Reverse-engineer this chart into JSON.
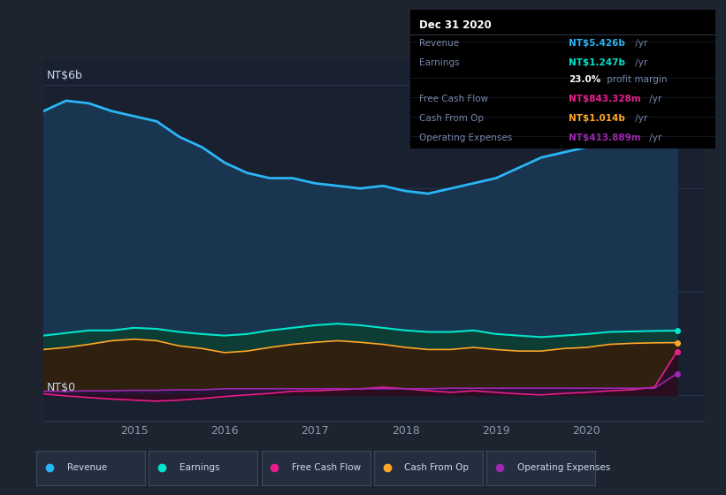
{
  "bg_color": "#1e2330",
  "plot_bg_color": "#192030",
  "ylabel_top": "NT$6b",
  "ylabel_bottom": "NT$0",
  "years": [
    2014.0,
    2014.25,
    2014.5,
    2014.75,
    2015.0,
    2015.25,
    2015.5,
    2015.75,
    2016.0,
    2016.25,
    2016.5,
    2016.75,
    2017.0,
    2017.25,
    2017.5,
    2017.75,
    2018.0,
    2018.25,
    2018.5,
    2018.75,
    2019.0,
    2019.25,
    2019.5,
    2019.75,
    2020.0,
    2020.25,
    2020.5,
    2020.75,
    2021.0
  ],
  "revenue": [
    5.5,
    5.7,
    5.65,
    5.5,
    5.4,
    5.3,
    5.0,
    4.8,
    4.5,
    4.3,
    4.2,
    4.2,
    4.1,
    4.05,
    4.0,
    4.05,
    3.95,
    3.9,
    4.0,
    4.1,
    4.2,
    4.4,
    4.6,
    4.7,
    4.8,
    5.0,
    5.2,
    5.35,
    5.426
  ],
  "earnings": [
    1.15,
    1.2,
    1.25,
    1.25,
    1.3,
    1.28,
    1.22,
    1.18,
    1.15,
    1.18,
    1.25,
    1.3,
    1.35,
    1.38,
    1.35,
    1.3,
    1.25,
    1.22,
    1.22,
    1.25,
    1.18,
    1.15,
    1.12,
    1.15,
    1.18,
    1.22,
    1.23,
    1.24,
    1.247
  ],
  "free_cash_flow": [
    0.02,
    -0.02,
    -0.05,
    -0.08,
    -0.1,
    -0.12,
    -0.1,
    -0.07,
    -0.03,
    0.0,
    0.03,
    0.07,
    0.08,
    0.1,
    0.12,
    0.15,
    0.12,
    0.08,
    0.05,
    0.08,
    0.05,
    0.02,
    0.0,
    0.03,
    0.05,
    0.08,
    0.1,
    0.15,
    0.843
  ],
  "cash_from_op": [
    0.88,
    0.92,
    0.98,
    1.05,
    1.08,
    1.05,
    0.95,
    0.9,
    0.82,
    0.85,
    0.92,
    0.98,
    1.02,
    1.05,
    1.02,
    0.98,
    0.92,
    0.88,
    0.88,
    0.92,
    0.88,
    0.85,
    0.85,
    0.9,
    0.92,
    0.98,
    1.0,
    1.01,
    1.014
  ],
  "operating_expenses": [
    0.07,
    0.07,
    0.08,
    0.08,
    0.09,
    0.09,
    0.1,
    0.1,
    0.12,
    0.12,
    0.12,
    0.12,
    0.12,
    0.12,
    0.12,
    0.12,
    0.12,
    0.12,
    0.13,
    0.13,
    0.13,
    0.13,
    0.13,
    0.13,
    0.13,
    0.13,
    0.13,
    0.13,
    0.414
  ],
  "revenue_color": "#29b6f6",
  "revenue_fill": "#1a3550",
  "earnings_color": "#00e5cc",
  "earnings_fill": "#0d3d35",
  "free_cash_flow_color": "#e91e8c",
  "free_cash_flow_fill": "#2a0d20",
  "cash_from_op_color": "#ffa726",
  "cash_from_op_fill": "#302010",
  "operating_expenses_color": "#9c27b0",
  "operating_expenses_fill": "#251535",
  "grid_color": "#2a3550",
  "text_color": "#8899aa",
  "axis_text_color": "#ccddee",
  "legend_bg": "#252e3e",
  "legend_edge": "#3a4a5a",
  "xticks": [
    2015,
    2016,
    2017,
    2018,
    2019,
    2020
  ],
  "ylim": [
    -0.5,
    6.5
  ],
  "info_box": {
    "title": "Dec 31 2020",
    "rows": [
      {
        "label": "Revenue",
        "value": "NT$5.426b",
        "unit": " /yr",
        "value_color": "#29b6f6"
      },
      {
        "label": "Earnings",
        "value": "NT$1.247b",
        "unit": " /yr",
        "value_color": "#00e5cc"
      },
      {
        "label": "",
        "value": "23.0%",
        "unit": " profit margin",
        "value_color": "#ffffff"
      },
      {
        "label": "Free Cash Flow",
        "value": "NT$843.328m",
        "unit": " /yr",
        "value_color": "#e91e8c"
      },
      {
        "label": "Cash From Op",
        "value": "NT$1.014b",
        "unit": " /yr",
        "value_color": "#ffa726"
      },
      {
        "label": "Operating Expenses",
        "value": "NT$413.889m",
        "unit": " /yr",
        "value_color": "#9c27b0"
      }
    ]
  }
}
